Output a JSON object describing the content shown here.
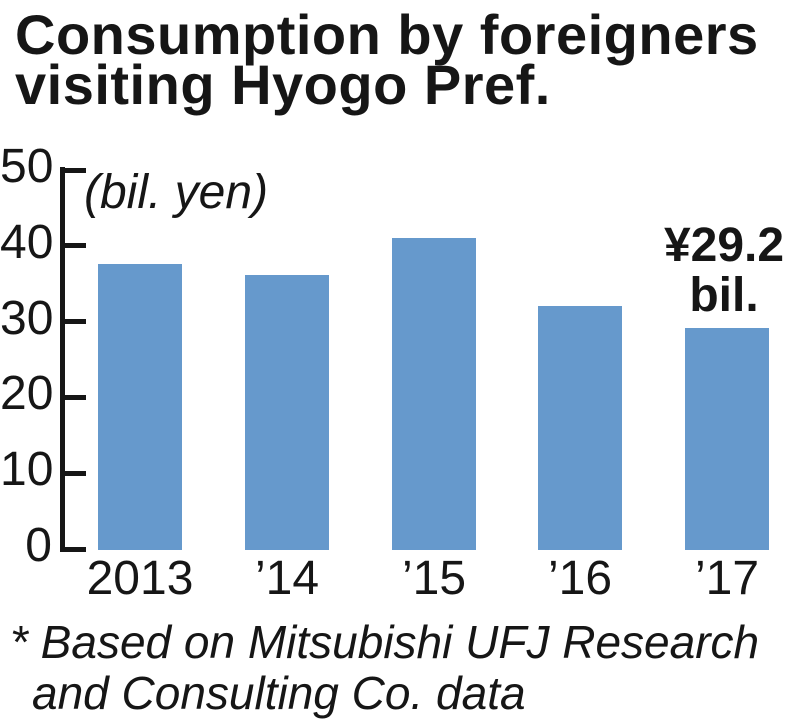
{
  "title": {
    "line1": "Consumption by foreigners",
    "line2": "visiting Hyogo Pref."
  },
  "chart_data": {
    "type": "bar",
    "title": "Consumption by foreigners visiting Hyogo Pref.",
    "unit_label": "(bil. yen)",
    "categories": [
      "2013",
      "’14",
      "’15",
      "’16",
      "’17"
    ],
    "values": [
      37.6,
      36.1,
      41.0,
      32.0,
      29.2
    ],
    "xlabel": "",
    "ylabel": "bil. yen",
    "ylim": [
      0,
      50
    ],
    "yticks": [
      0,
      10,
      20,
      30,
      40,
      50
    ],
    "grid": false,
    "legend": "none",
    "bar_color": "#6699cc",
    "annotation": {
      "line1": "¥29.2",
      "line2": "bil.",
      "applies_to": "’17"
    }
  },
  "footnote": {
    "line1": "* Based on Mitsubishi UFJ Research",
    "line2": "and Consulting Co. data"
  },
  "colors": {
    "bar": "#6699cc",
    "text": "#161616",
    "background": "#ffffff"
  }
}
